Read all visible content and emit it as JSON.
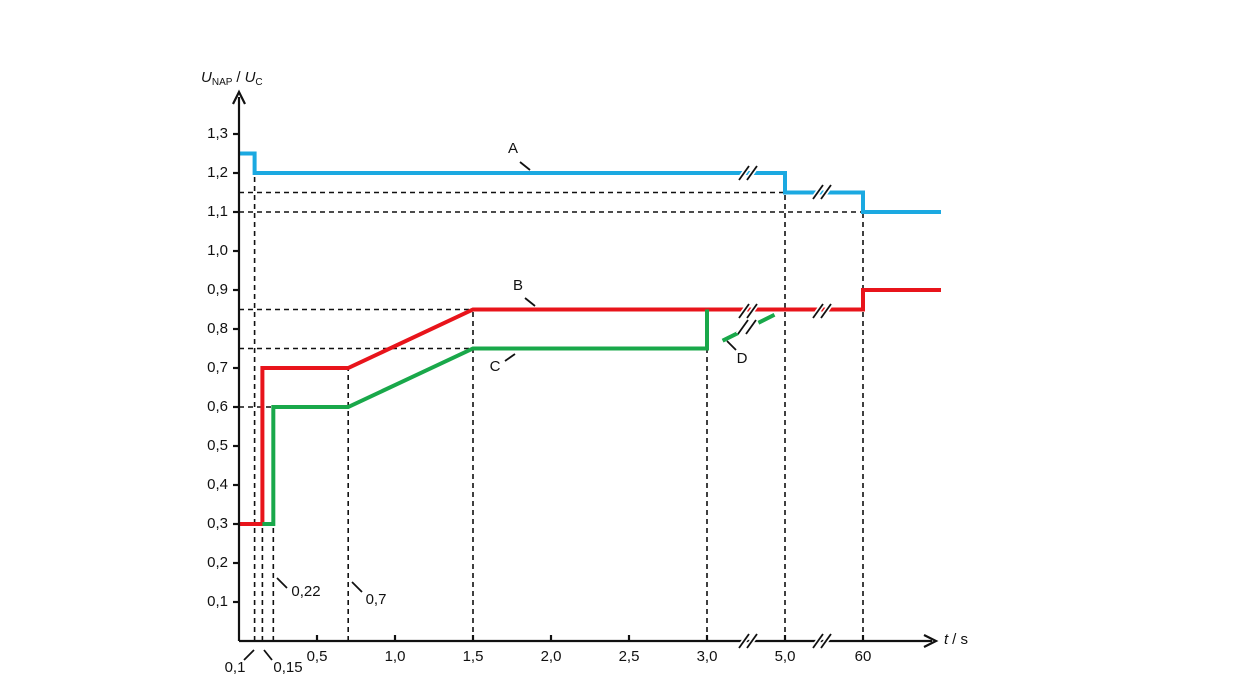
{
  "chart_data": {
    "type": "line",
    "y_label": [
      "U",
      "NAP",
      "/",
      "U",
      "C"
    ],
    "x_label": [
      "t",
      "/ s"
    ],
    "xlim": [
      0,
      100
    ],
    "ylim": [
      0,
      1.4
    ],
    "xticks": [
      {
        "value": 0.5,
        "label": "0,5"
      },
      {
        "value": 1.0,
        "label": "1,0"
      },
      {
        "value": 1.5,
        "label": "1,5"
      },
      {
        "value": 2.0,
        "label": "2,0"
      },
      {
        "value": 2.5,
        "label": "2,5"
      },
      {
        "value": 3.0,
        "label": "3,0"
      },
      {
        "value": 5.0,
        "label": "5,0"
      },
      60
    ],
    "yticks": [
      {
        "value": 0.1,
        "label": "0,1"
      },
      {
        "value": 0.2,
        "label": "0,2"
      },
      {
        "value": 0.3,
        "label": "0,3"
      },
      {
        "value": 0.4,
        "label": "0,4"
      },
      {
        "value": 0.5,
        "label": "0,5"
      },
      {
        "value": 0.6,
        "label": "0,6"
      },
      {
        "value": 0.7,
        "label": "0,7"
      },
      {
        "value": 0.8,
        "label": "0,8"
      },
      {
        "value": 0.9,
        "label": "0,9"
      },
      {
        "value": 1.0,
        "label": "1,0"
      },
      {
        "value": 1.1,
        "label": "1,1"
      },
      {
        "value": 1.2,
        "label": "1,2"
      },
      {
        "value": 1.3,
        "label": "1,3"
      }
    ],
    "x_annotations": [
      {
        "value": 0.1,
        "label": "0,1"
      },
      {
        "value": 0.15,
        "label": "0,15"
      },
      {
        "value": 0.22,
        "label": "0,22"
      },
      {
        "value": 0.7,
        "label": "0,7"
      }
    ],
    "series": [
      {
        "name": "A",
        "color": "#1ba9e1",
        "x": [
          0,
          0.1,
          0.1,
          5.0,
          5.0,
          60,
          60,
          100
        ],
        "values": [
          1.25,
          1.25,
          1.2,
          1.2,
          1.15,
          1.15,
          1.1,
          1.1
        ]
      },
      {
        "name": "B",
        "color": "#e8141b",
        "x": [
          0,
          0.15,
          0.15,
          0.7,
          1.5,
          60,
          60,
          100
        ],
        "values": [
          0.3,
          0.3,
          0.7,
          0.7,
          0.85,
          0.85,
          0.9,
          0.9
        ]
      },
      {
        "name": "C",
        "color": "#19a84a",
        "x": [
          0.15,
          0.22,
          0.22,
          0.7,
          1.5,
          3.0,
          3.0
        ],
        "values": [
          0.3,
          0.3,
          0.6,
          0.6,
          0.75,
          0.75,
          0.85
        ]
      },
      {
        "name": "D",
        "color": "#19a84a",
        "dashed": true,
        "x": [
          3.4,
          5.0
        ],
        "values": [
          0.77,
          0.85
        ]
      }
    ],
    "guides": {
      "vertical": [
        {
          "x": 0.1,
          "y": 1.2
        },
        {
          "x": 0.15,
          "y": 0.3
        },
        {
          "x": 0.22,
          "y": 0.3
        },
        {
          "x": 0.7,
          "y": 0.7
        },
        {
          "x": 1.5,
          "y": 0.85
        },
        {
          "x": 3.0,
          "y": 0.75
        },
        {
          "x": 5.0,
          "y": 1.15
        },
        {
          "x": 60,
          "y": 1.1
        }
      ],
      "horizontal": [
        {
          "y": 1.15,
          "x": 5.0
        },
        {
          "y": 1.1,
          "x": 60
        },
        {
          "y": 0.85,
          "x": 1.5
        },
        {
          "y": 0.75,
          "x": 1.5
        },
        {
          "y": 0.6,
          "x": 0.22
        }
      ]
    }
  }
}
